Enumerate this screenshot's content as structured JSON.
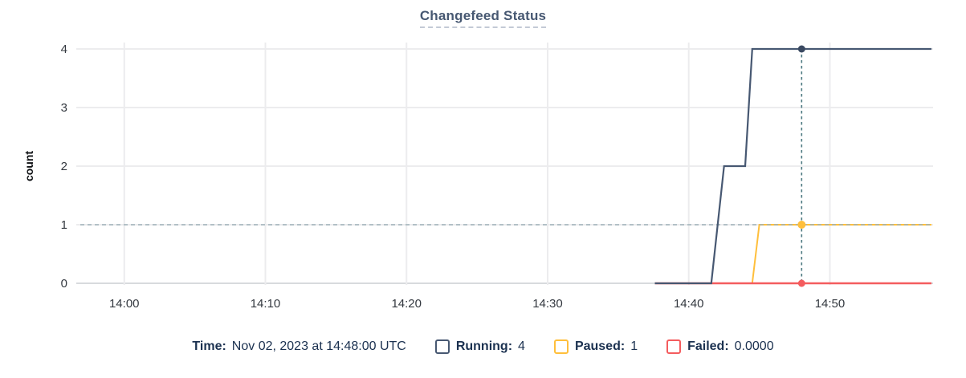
{
  "title": "Changefeed Status",
  "y_axis": {
    "label": "count"
  },
  "legend": {
    "time_label": "Time:",
    "time_value": "Nov 02, 2023 at 14:48:00 UTC",
    "items": [
      {
        "label": "Running:",
        "value": "4",
        "color": "#475872"
      },
      {
        "label": "Paused:",
        "value": "1",
        "color": "#ffbf3c"
      },
      {
        "label": "Failed:",
        "value": "0.0000",
        "color": "#f45c5e"
      }
    ]
  },
  "colors": {
    "running": "#475872",
    "paused": "#ffbf3c",
    "failed": "#f45c5e",
    "gridline": "#ececee",
    "baseline": "#d8dadd",
    "tick_text": "#33383f",
    "crosshair_vertical": "#4e7a82",
    "reference_dashed": "#9eb2b8",
    "running_dot": "#3a4961",
    "title_text": "#475872",
    "legend_text": "#1b3150"
  },
  "chart_data": {
    "type": "line",
    "title": "Changefeed Status",
    "xlabel": "",
    "ylabel": "count",
    "ylim": [
      0,
      4
    ],
    "y_ticks": [
      {
        "value": 0,
        "label": "0"
      },
      {
        "value": 1,
        "label": "1"
      },
      {
        "value": 2,
        "label": "2"
      },
      {
        "value": 3,
        "label": "3"
      },
      {
        "value": 4,
        "label": "4"
      }
    ],
    "x_domain_minutes_after_1400": [
      -3.4,
      57.2
    ],
    "x_ticks": [
      {
        "minute": 0,
        "label": "14:00"
      },
      {
        "minute": 10,
        "label": "14:10"
      },
      {
        "minute": 20,
        "label": "14:20"
      },
      {
        "minute": 30,
        "label": "14:30"
      },
      {
        "minute": 40,
        "label": "14:40"
      },
      {
        "minute": 50,
        "label": "14:50"
      }
    ],
    "grid": true,
    "legend_position": "bottom",
    "series": [
      {
        "name": "Running",
        "color": "#475872",
        "points": [
          [
            37.6,
            0
          ],
          [
            41.6,
            0
          ],
          [
            42.5,
            2
          ],
          [
            44.0,
            2
          ],
          [
            44.5,
            4
          ],
          [
            57.2,
            4
          ]
        ]
      },
      {
        "name": "Paused",
        "color": "#ffbf3c",
        "points": [
          [
            37.6,
            0
          ],
          [
            44.5,
            0
          ],
          [
            45.0,
            1
          ],
          [
            57.2,
            1
          ]
        ]
      },
      {
        "name": "Failed",
        "color": "#f45c5e",
        "points": [
          [
            37.6,
            0
          ],
          [
            57.2,
            0
          ]
        ]
      }
    ],
    "hover": {
      "minute": 48,
      "time_label": "Nov 02, 2023 at 14:48:00 UTC",
      "values": {
        "Running": 4,
        "Paused": 1,
        "Failed": 0
      },
      "reference_line_y": 1
    }
  }
}
